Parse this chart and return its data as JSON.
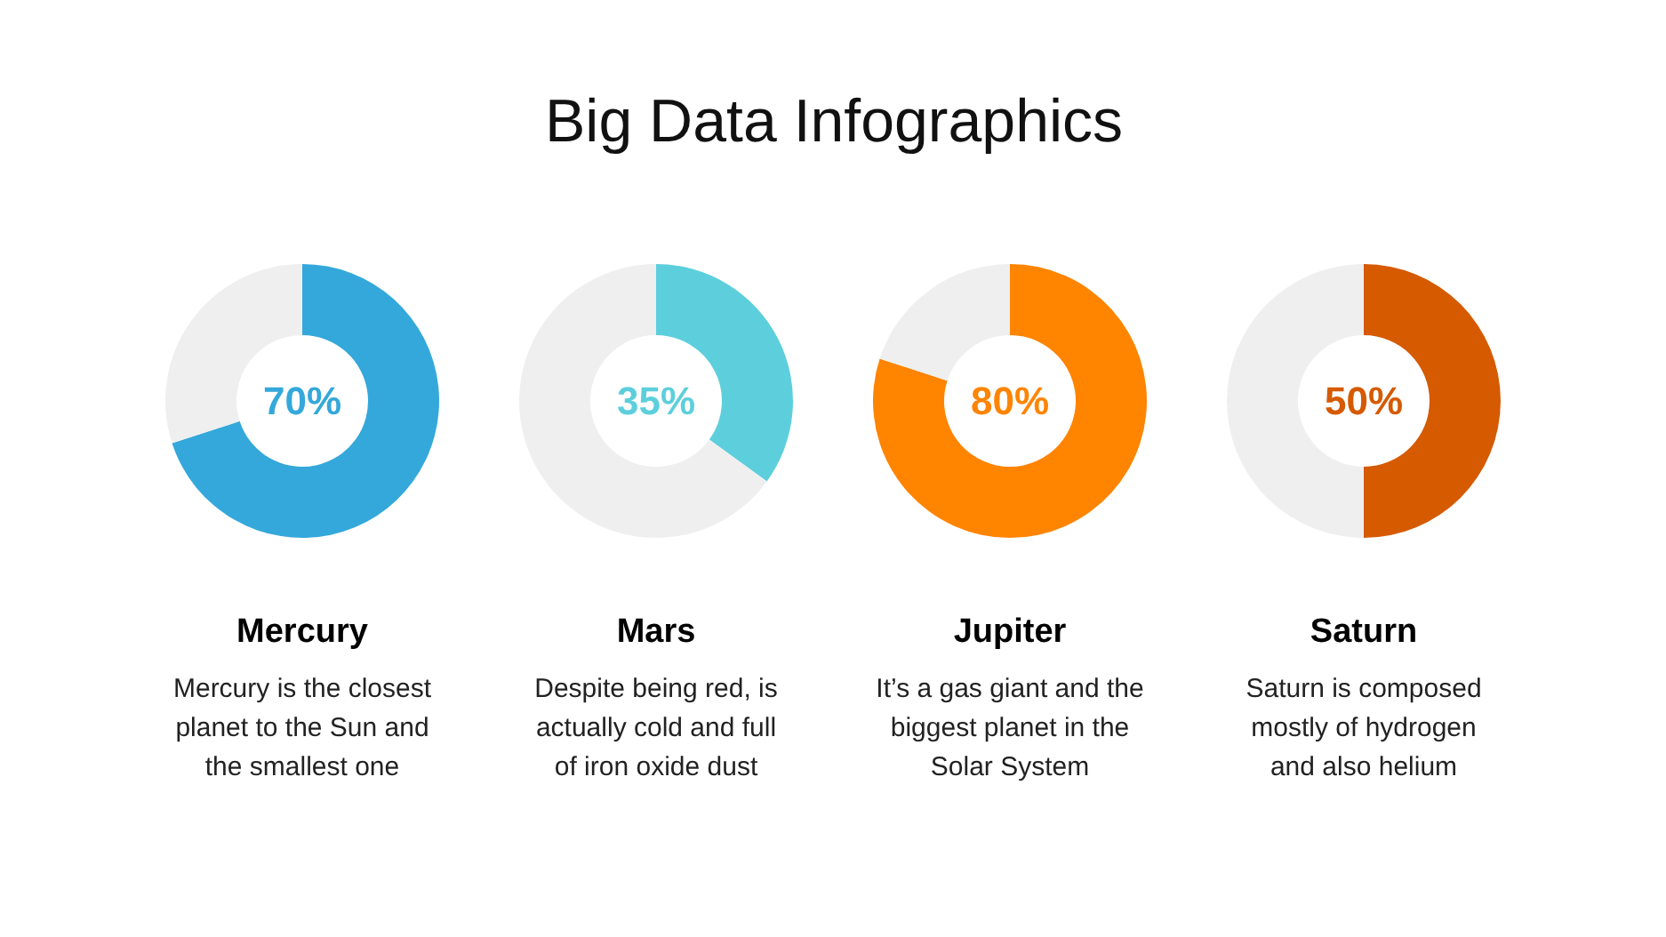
{
  "chart_data": [
    {
      "type": "other",
      "title": "Big Data Infographics"
    },
    {
      "type": "donut",
      "title": "Mercury",
      "categories": [
        null,
        null
      ],
      "values": [
        70,
        30
      ],
      "colors": [
        "#34a8da",
        "#efefef"
      ],
      "value_labels": [
        "70%",
        null
      ],
      "annotations": [
        "Mercury is the closest\nplanet to the Sun and\nthe smallest one"
      ]
    },
    {
      "type": "donut",
      "title": "Mars",
      "categories": [
        null,
        null
      ],
      "values": [
        35,
        65
      ],
      "colors": [
        "#5dcfdc",
        "#efefef"
      ],
      "value_labels": [
        "35%",
        null
      ],
      "annotations": [
        "Despite being red, is\nactually cold and full\nof iron oxide dust"
      ]
    },
    {
      "type": "donut",
      "title": "Jupiter",
      "categories": [
        null,
        null
      ],
      "values": [
        80,
        20
      ],
      "colors": [
        "#ff8400",
        "#efefef"
      ],
      "value_labels": [
        "80%",
        null
      ],
      "annotations": [
        "It’s a gas giant and the\nbiggest planet in the\nSolar System"
      ]
    },
    {
      "type": "donut",
      "title": "Saturn",
      "categories": [
        null,
        null
      ],
      "values": [
        50,
        50
      ],
      "colors": [
        "#d55a00",
        "#efefef"
      ],
      "value_labels": [
        "50%",
        null
      ],
      "annotations": [
        "Saturn is composed\nmostly of hydrogen\nand also helium"
      ]
    }
  ]
}
